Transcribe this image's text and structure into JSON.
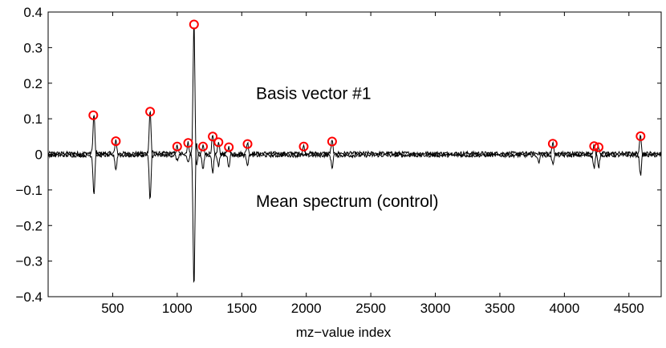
{
  "chart_data": {
    "type": "line",
    "title": "",
    "xlabel": "mz−value index",
    "ylabel": "",
    "xlim": [
      0,
      4750
    ],
    "ylim": [
      -0.4,
      0.4
    ],
    "xticks": [
      500,
      1000,
      1500,
      2000,
      2500,
      3000,
      3500,
      4000,
      4500
    ],
    "xtick_labels": [
      "500",
      "1000",
      "1500",
      "2000",
      "2500",
      "3000",
      "3500",
      "4000",
      "4500"
    ],
    "yticks": [
      -0.4,
      -0.3,
      -0.2,
      -0.1,
      0,
      0.1,
      0.2,
      0.3,
      0.4
    ],
    "ytick_labels": [
      "−0.4",
      "−0.3",
      "−0.2",
      "−0.1",
      "0",
      "0.1",
      "0.2",
      "0.3",
      "0.4"
    ],
    "grid": false,
    "annotations": [
      {
        "text": "Basis vector #1",
        "x": 1610,
        "y": 0.155
      },
      {
        "text": "Mean spectrum (control)",
        "x": 1610,
        "y": -0.148
      }
    ],
    "series": [
      {
        "name": "Basis vector #1",
        "color": "#000000",
        "peaks": [
          [
            355,
            0.11
          ],
          [
            525,
            0.035
          ],
          [
            790,
            0.12
          ],
          [
            1000,
            0.02
          ],
          [
            1085,
            0.03
          ],
          [
            1130,
            0.365
          ],
          [
            1200,
            0.02
          ],
          [
            1275,
            0.05
          ],
          [
            1320,
            0.03
          ],
          [
            1400,
            0.018
          ],
          [
            1545,
            0.03
          ],
          [
            1980,
            0.02
          ],
          [
            2200,
            0.035
          ],
          [
            3910,
            0.028
          ],
          [
            4230,
            0.02
          ],
          [
            4265,
            0.018
          ],
          [
            4590,
            0.05
          ]
        ]
      },
      {
        "name": "Mean spectrum (control)",
        "color": "#000000",
        "peaks": [
          [
            355,
            -0.11
          ],
          [
            525,
            -0.04
          ],
          [
            790,
            -0.125
          ],
          [
            1000,
            -0.015
          ],
          [
            1085,
            -0.02
          ],
          [
            1130,
            -0.365
          ],
          [
            1200,
            -0.04
          ],
          [
            1275,
            -0.05
          ],
          [
            1320,
            -0.03
          ],
          [
            1400,
            -0.03
          ],
          [
            1545,
            -0.025
          ],
          [
            2200,
            -0.035
          ],
          [
            3800,
            -0.02
          ],
          [
            3910,
            -0.025
          ],
          [
            4230,
            -0.035
          ],
          [
            4265,
            -0.035
          ],
          [
            4590,
            -0.055
          ]
        ]
      }
    ],
    "markers": {
      "style": "circle",
      "color": "#ff0000",
      "points": [
        [
          350,
          0.11
        ],
        [
          525,
          0.037
        ],
        [
          790,
          0.12
        ],
        [
          1000,
          0.022
        ],
        [
          1085,
          0.032
        ],
        [
          1130,
          0.365
        ],
        [
          1200,
          0.022
        ],
        [
          1275,
          0.05
        ],
        [
          1320,
          0.034
        ],
        [
          1400,
          0.02
        ],
        [
          1545,
          0.029
        ],
        [
          1980,
          0.022
        ],
        [
          2200,
          0.036
        ],
        [
          3910,
          0.03
        ],
        [
          4230,
          0.023
        ],
        [
          4265,
          0.02
        ],
        [
          4590,
          0.051
        ]
      ]
    }
  }
}
